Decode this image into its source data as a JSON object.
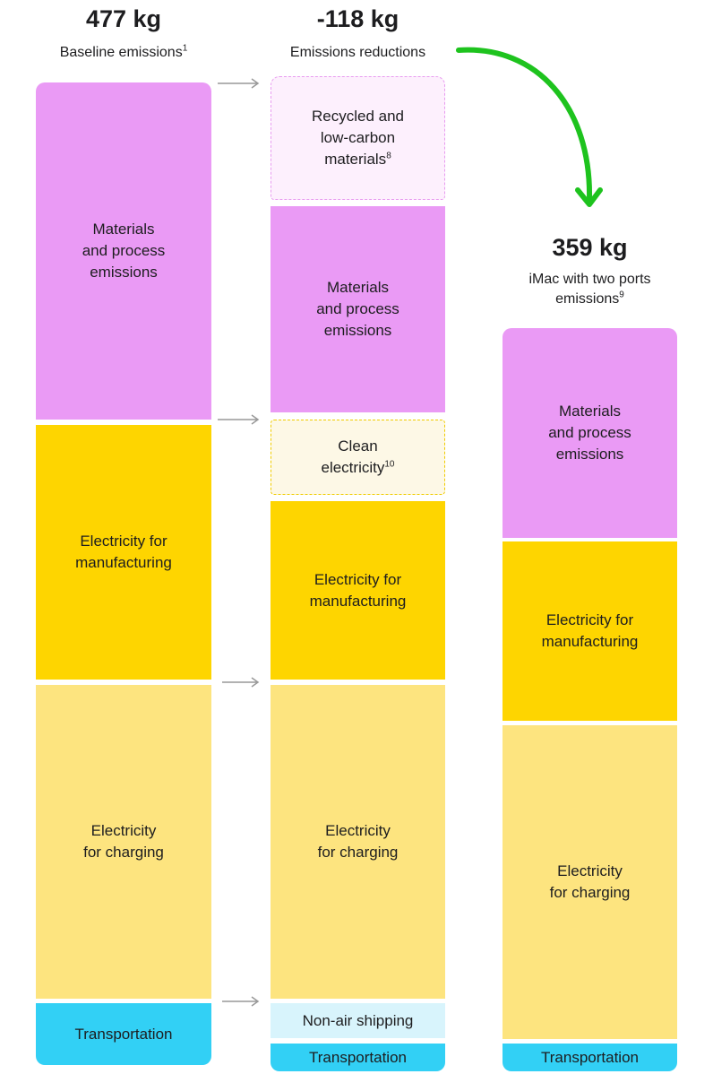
{
  "columns": [
    {
      "total": "477 kg",
      "caption": "Baseline emissions",
      "note": "1",
      "segments": [
        {
          "label": "Materials\nand process\nemissions"
        },
        {
          "label": "Electricity for\nmanufacturing"
        },
        {
          "label": "Electricity\nfor charging"
        },
        {
          "label": "Transportation"
        }
      ]
    },
    {
      "total": "-118 kg",
      "caption": "Emissions reductions",
      "segments": [
        {
          "label": "Recycled and\nlow-carbon\nmaterials",
          "note": "8"
        },
        {
          "label": "Materials\nand process\nemissions"
        },
        {
          "label": "Clean\nelectricity",
          "note": "10"
        },
        {
          "label": "Electricity for\nmanufacturing"
        },
        {
          "label": "Electricity\nfor charging"
        },
        {
          "label": "Non-air shipping"
        },
        {
          "label": "Transportation"
        }
      ]
    },
    {
      "total": "359 kg",
      "caption": "iMac with two ports\nemissions",
      "note": "9",
      "segments": [
        {
          "label": "Materials\nand process\nemissions"
        },
        {
          "label": "Electricity for\nmanufacturing"
        },
        {
          "label": "Electricity\nfor charging"
        },
        {
          "label": "Transportation"
        }
      ]
    }
  ]
}
